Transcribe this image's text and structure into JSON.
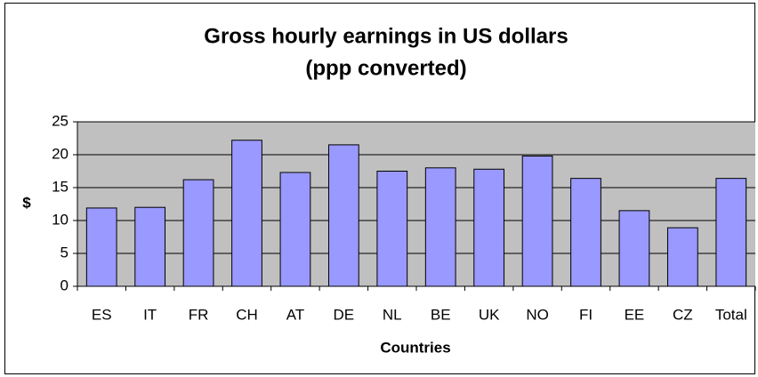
{
  "chart_data": {
    "type": "bar",
    "title": "Gross hourly earnings in US dollars",
    "subtitle": "(ppp converted)",
    "x_label": "Countries",
    "y_label": "$",
    "categories": [
      "ES",
      "IT",
      "FR",
      "CH",
      "AT",
      "DE",
      "NL",
      "BE",
      "UK",
      "NO",
      "FI",
      "EE",
      "CZ",
      "Total"
    ],
    "values": [
      11.9,
      12.0,
      16.2,
      22.2,
      17.3,
      21.5,
      17.5,
      18.0,
      17.8,
      19.8,
      16.4,
      11.5,
      8.9,
      16.4
    ],
    "color": "#9999ff",
    "ylim": [
      0,
      25
    ],
    "yticks": [
      0,
      5,
      10,
      15,
      20,
      25
    ],
    "grid": true
  }
}
